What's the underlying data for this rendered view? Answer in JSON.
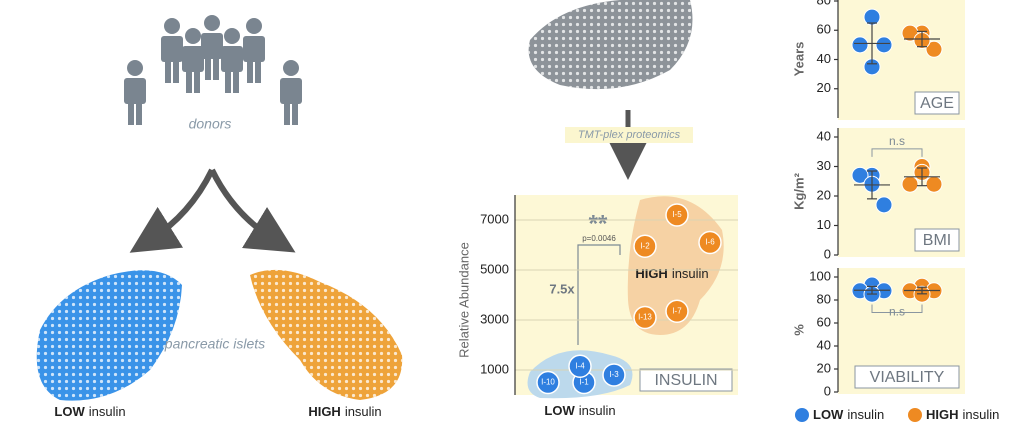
{
  "diagram": {
    "donors": "donors",
    "islets": "pancreatic islets",
    "method": "TMT-plex proteomics",
    "low": {
      "bold": "LOW",
      "text": "insulin"
    },
    "high": {
      "bold": "HIGH",
      "text": "insulin"
    }
  },
  "legend": [
    {
      "bold": "LOW",
      "text": "insulin",
      "color": "#2f7fe0"
    },
    {
      "bold": "HIGH",
      "text": "insulin",
      "color": "#ee8a22"
    }
  ],
  "chart_data": [
    {
      "type": "scatter",
      "ylabel": "Relative Abundance",
      "box_label": "INSULIN",
      "ylim": [
        0,
        8000
      ],
      "yticks": [
        1000,
        3000,
        5000,
        7000
      ],
      "grid": true,
      "series": [
        {
          "color": "#2f7fe0",
          "labels": [
            "I-10",
            "I-1",
            "I-4",
            "I-3"
          ],
          "values": [
            500,
            500,
            1150,
            800
          ]
        },
        {
          "color": "#ee8a22",
          "labels": [
            "I-5",
            "I-2",
            "I-6",
            "I-13",
            "I-7"
          ],
          "values": [
            7200,
            5950,
            6100,
            3100,
            3350
          ]
        }
      ],
      "annotations": {
        "significance": "**",
        "p_value": "p=0.0046",
        "fold": "7.5x",
        "group_high": {
          "bold": "HIGH",
          "text": "insulin"
        },
        "group_low": {
          "bold": "LOW",
          "text": "insulin"
        }
      }
    },
    {
      "type": "dot",
      "ylabel": "Years",
      "box_label": "AGE",
      "ylim": [
        0,
        80
      ],
      "yticks": [
        20,
        40,
        60,
        80
      ],
      "series": [
        {
          "color": "#2f7fe0",
          "values": [
            69,
            50,
            50,
            35
          ]
        },
        {
          "color": "#ee8a22",
          "values": [
            58,
            58,
            47,
            53
          ]
        }
      ]
    },
    {
      "type": "dot",
      "ylabel": "Kg/m²",
      "box_label": "BMI",
      "ylim": [
        0,
        40
      ],
      "yticks": [
        0,
        10,
        20,
        30,
        40
      ],
      "annotation": "n.s",
      "series": [
        {
          "color": "#2f7fe0",
          "values": [
            27,
            27,
            17,
            24
          ]
        },
        {
          "color": "#ee8a22",
          "values": [
            30,
            24,
            24,
            28
          ]
        }
      ]
    },
    {
      "type": "dot",
      "ylabel": "%",
      "box_label": "VIABILITY",
      "ylim": [
        0,
        100
      ],
      "yticks": [
        0,
        20,
        40,
        60,
        80,
        100
      ],
      "annotation": "n.s",
      "series": [
        {
          "color": "#2f7fe0",
          "values": [
            93,
            88,
            88,
            85
          ]
        },
        {
          "color": "#ee8a22",
          "values": [
            92,
            88,
            88,
            85
          ]
        }
      ]
    }
  ]
}
